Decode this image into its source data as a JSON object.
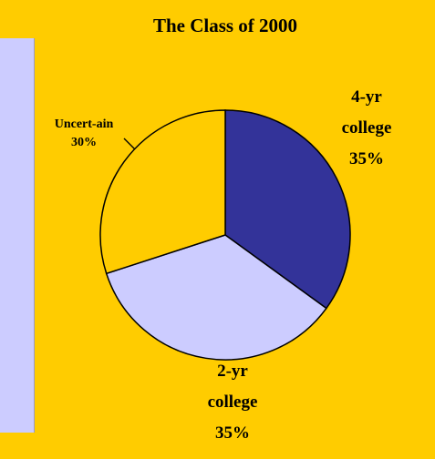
{
  "chart_data": {
    "type": "pie",
    "title": "The Class of 2000",
    "categories": [
      "4-yr college",
      "2-yr college",
      "Uncert-ain"
    ],
    "values": [
      35,
      35,
      30
    ],
    "value_labels": [
      "35%",
      "35%",
      "30%"
    ],
    "colors": [
      "#333399",
      "#ccccff",
      "#ffcc00"
    ]
  }
}
